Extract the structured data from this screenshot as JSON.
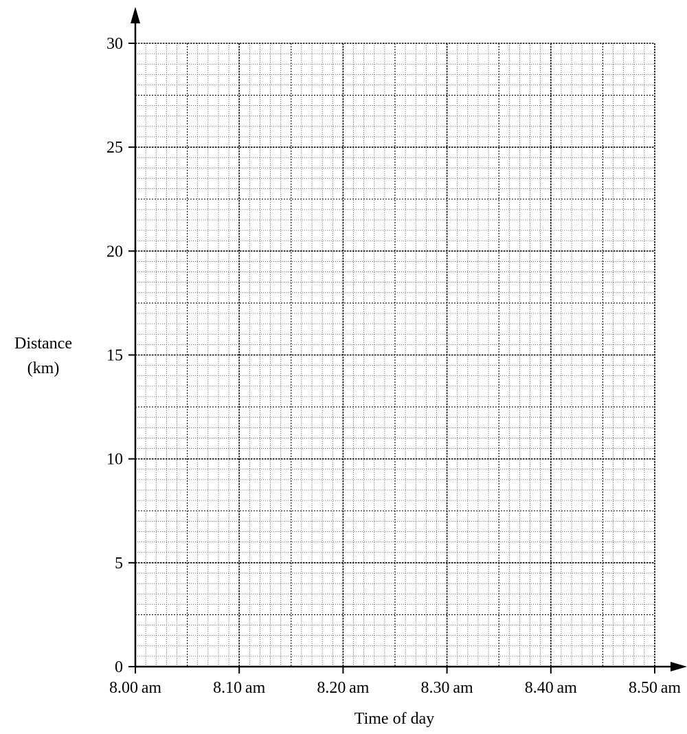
{
  "chart_data": {
    "type": "line",
    "title": "",
    "xlabel": "Time of day",
    "ylabel_lines": [
      "Distance",
      "(km)"
    ],
    "x_ticks": [
      "8.00 am",
      "8.10 am",
      "8.20 am",
      "8.30 am",
      "8.40 am",
      "8.50 am"
    ],
    "x_tick_minutes": [
      0,
      10,
      20,
      30,
      40,
      50
    ],
    "xlim_minutes": [
      0,
      50
    ],
    "y_ticks": [
      0,
      5,
      10,
      15,
      20,
      25,
      30
    ],
    "ylim": [
      0,
      30
    ],
    "grid": true,
    "minor_grid_step_x_minutes": 1,
    "minor_grid_step_y": 0.5,
    "series": [],
    "colors": {
      "axis": "#000000",
      "major_grid": "#000000",
      "minor_grid": "#555555",
      "background": "#ffffff"
    }
  }
}
